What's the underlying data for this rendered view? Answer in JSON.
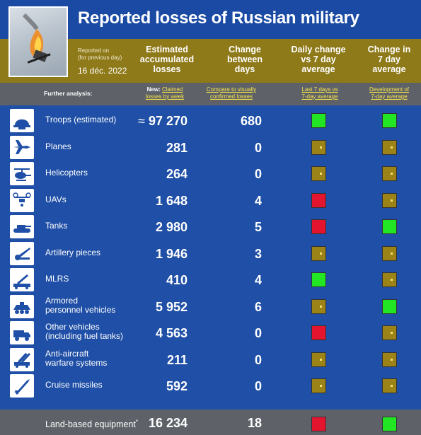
{
  "title": "Reported losses of Russian military",
  "photo_icon": "burning-helicopter-photo",
  "reported_on": [
    "Reported on",
    "(for previous day)"
  ],
  "date": "16 déc. 2022",
  "columns": {
    "accumulated": [
      "Estimated",
      "accumulated",
      "losses"
    ],
    "change": [
      "Change",
      "between",
      "days"
    ],
    "daily": [
      "Daily change",
      "vs 7 day",
      "average"
    ],
    "seven_day": [
      "Change in",
      "7 day",
      "average"
    ]
  },
  "further_analysis": "Further analysis:",
  "links": {
    "weekly": {
      "prefix": "New:",
      "line1": "Claimed",
      "line2": "losses by week"
    },
    "visual": {
      "line1": "Compare to visually",
      "line2": "confirmed losses"
    },
    "last7": {
      "line1": "Last 7 days vs",
      "line2": "7-day average"
    },
    "development": {
      "line1": "Development of",
      "line2": "7-day average"
    }
  },
  "rows": [
    {
      "icon": "helmet-icon",
      "label": [
        "Troops (estimated)"
      ],
      "approx": "≈",
      "value": "97 270",
      "change": "680",
      "daily": "green",
      "seven": "green"
    },
    {
      "icon": "jet-icon",
      "label": [
        "Planes"
      ],
      "value": "281",
      "change": "0",
      "daily": "neutral",
      "seven": "neutral"
    },
    {
      "icon": "helicopter-icon",
      "label": [
        "Helicopters"
      ],
      "value": "264",
      "change": "0",
      "daily": "neutral",
      "seven": "neutral"
    },
    {
      "icon": "drone-icon",
      "label": [
        "UAVs"
      ],
      "value": "1 648",
      "change": "4",
      "daily": "red",
      "seven": "neutral"
    },
    {
      "icon": "tank-icon",
      "label": [
        "Tanks"
      ],
      "value": "2 980",
      "change": "5",
      "daily": "red",
      "seven": "green"
    },
    {
      "icon": "artillery-icon",
      "label": [
        "Artillery pieces"
      ],
      "value": "1 946",
      "change": "3",
      "daily": "neutral",
      "seven": "neutral"
    },
    {
      "icon": "rocket-launcher-icon",
      "label": [
        "MLRS"
      ],
      "value": "410",
      "change": "4",
      "daily": "green",
      "seven": "neutral"
    },
    {
      "icon": "apc-icon",
      "label": [
        "Armored",
        "personnel vehicles"
      ],
      "value": "5 952",
      "change": "6",
      "daily": "neutral",
      "seven": "green"
    },
    {
      "icon": "truck-icon",
      "label": [
        "Other vehicles",
        "(including fuel tanks)"
      ],
      "value": "4 563",
      "change": "0",
      "daily": "red",
      "seven": "neutral"
    },
    {
      "icon": "anti-aircraft-icon",
      "label": [
        "Anti-aircraft",
        "warfare systems"
      ],
      "value": "211",
      "change": "0",
      "daily": "neutral",
      "seven": "neutral"
    },
    {
      "icon": "missile-icon",
      "label": [
        "Cruise missiles"
      ],
      "value": "592",
      "change": "0",
      "daily": "neutral",
      "seven": "neutral"
    }
  ],
  "footer": {
    "label": "Land-based equipment",
    "mark": "*",
    "value": "16 234",
    "change": "18",
    "daily": "red",
    "seven": "green"
  },
  "colors": {
    "green": "#22e524",
    "red": "#e3142e",
    "neutral": "#9b8317",
    "band": "#8f7a1a",
    "background": "#1f4fa6"
  }
}
